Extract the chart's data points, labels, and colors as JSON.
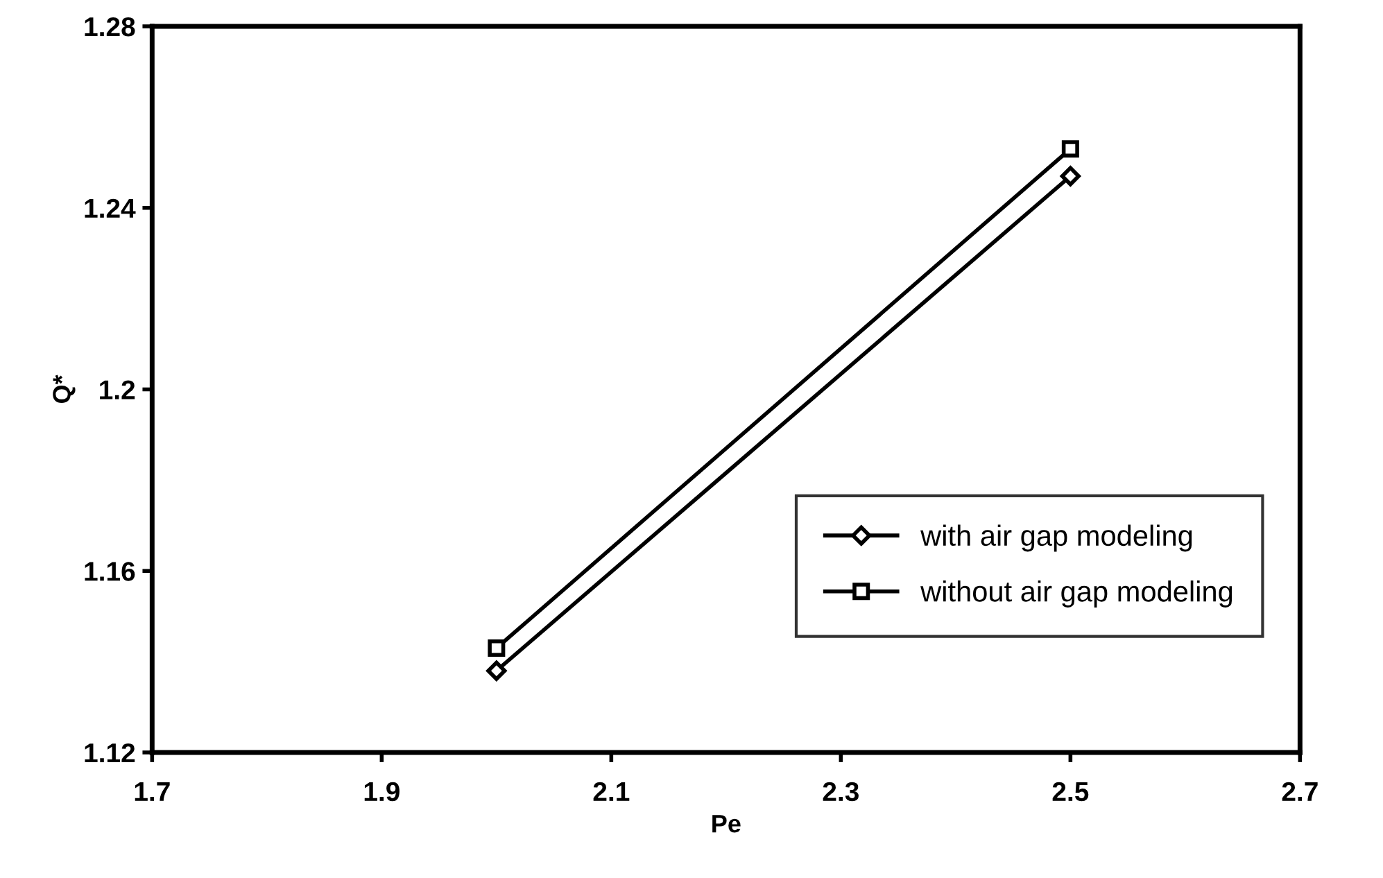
{
  "chart_data": {
    "type": "line",
    "xlabel": "Pe",
    "ylabel": "Q*",
    "x": [
      2.0,
      2.5
    ],
    "series": [
      {
        "name": "with air gap modeling",
        "color": "#000000",
        "values": [
          1.138,
          1.247
        ],
        "marker": "diamond"
      },
      {
        "name": "without air gap modeling",
        "color": "#000000",
        "values": [
          1.143,
          1.253
        ],
        "marker": "square"
      }
    ],
    "xlim": [
      1.7,
      2.7
    ],
    "xticks": [
      1.7,
      1.9,
      2.1,
      2.3,
      2.5,
      2.7
    ],
    "ylim": [
      1.12,
      1.28
    ],
    "yticks": [
      1.12,
      1.16,
      1.2,
      1.24,
      1.28
    ],
    "grid": false,
    "legend": "bottom right",
    "line_style": "solid"
  }
}
